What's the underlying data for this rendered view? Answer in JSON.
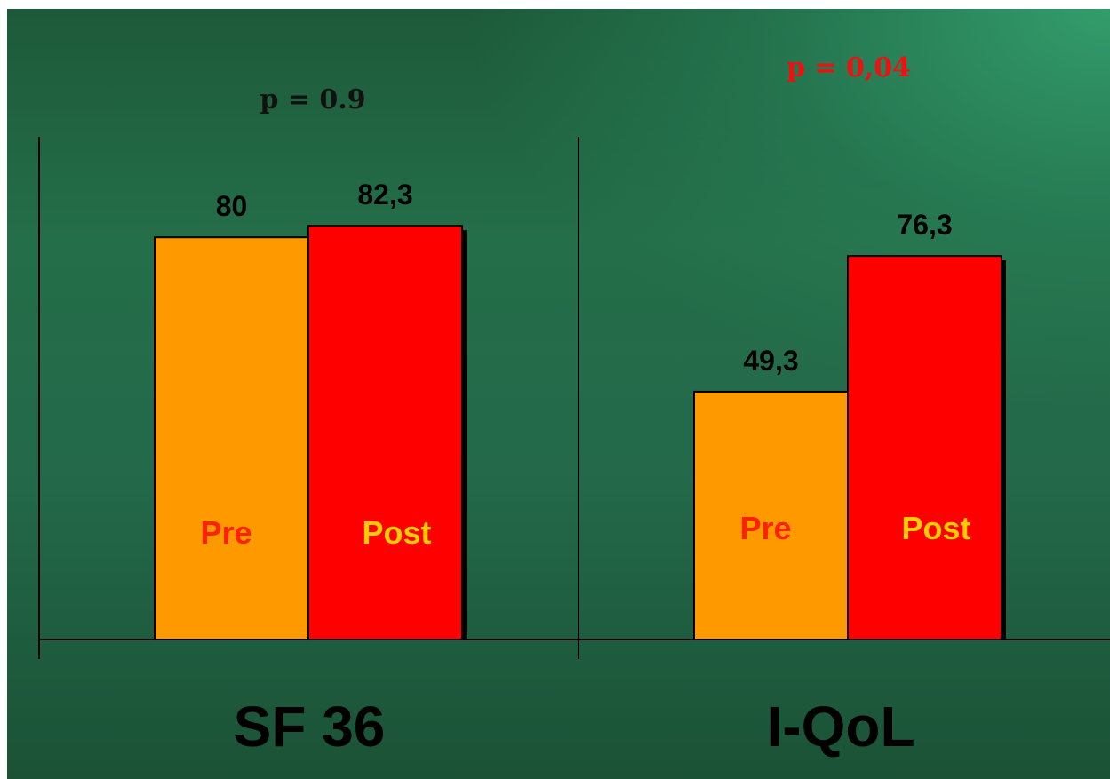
{
  "chart_data": {
    "type": "bar",
    "categories": [
      "SF 36",
      "I-QoL"
    ],
    "series": [
      {
        "values": [
          80,
          49.3
        ],
        "value_labels": [
          "80",
          "49,3"
        ],
        "bar_label": "Pre",
        "color": "#ff9900",
        "label_color": "#ff2200"
      },
      {
        "values": [
          82.3,
          76.3
        ],
        "value_labels": [
          "82,3",
          "76,3"
        ],
        "bar_label": "Post",
        "color": "#ff0000",
        "label_color": "#ffcc00"
      }
    ],
    "annotations": [
      {
        "category": "SF 36",
        "text": "p = 0.9",
        "color": "#111111"
      },
      {
        "category": "I-QoL",
        "text": "p = 0,04",
        "color": "#ee1111"
      }
    ],
    "ylim": [
      0,
      100
    ],
    "grid": false,
    "legend": "none"
  }
}
